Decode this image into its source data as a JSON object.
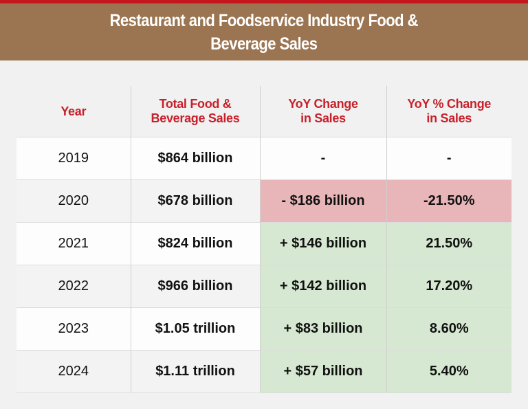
{
  "header": {
    "title": "Restaurant and Foodservice Industry Food &\nBeverage Sales"
  },
  "table": {
    "columns": [
      "Year",
      "Total Food &\nBeverage Sales",
      "YoY Change\nin Sales",
      "YoY % Change\nin Sales"
    ],
    "rows": [
      [
        "2019",
        "$864 billion",
        "-",
        "-"
      ],
      [
        "2020",
        "$678 billion",
        "- $186 billion",
        "-21.50%"
      ],
      [
        "2021",
        "$824 billion",
        "+ $146 billion",
        "21.50%"
      ],
      [
        "2022",
        "$966 billion",
        "+ $142 billion",
        "17.20%"
      ],
      [
        "2023",
        "$1.05 trillion",
        "+ $83 billion",
        "8.60%"
      ],
      [
        "2024",
        "$1.11 trillion",
        "+ $57 billion",
        "5.40%"
      ]
    ]
  }
}
